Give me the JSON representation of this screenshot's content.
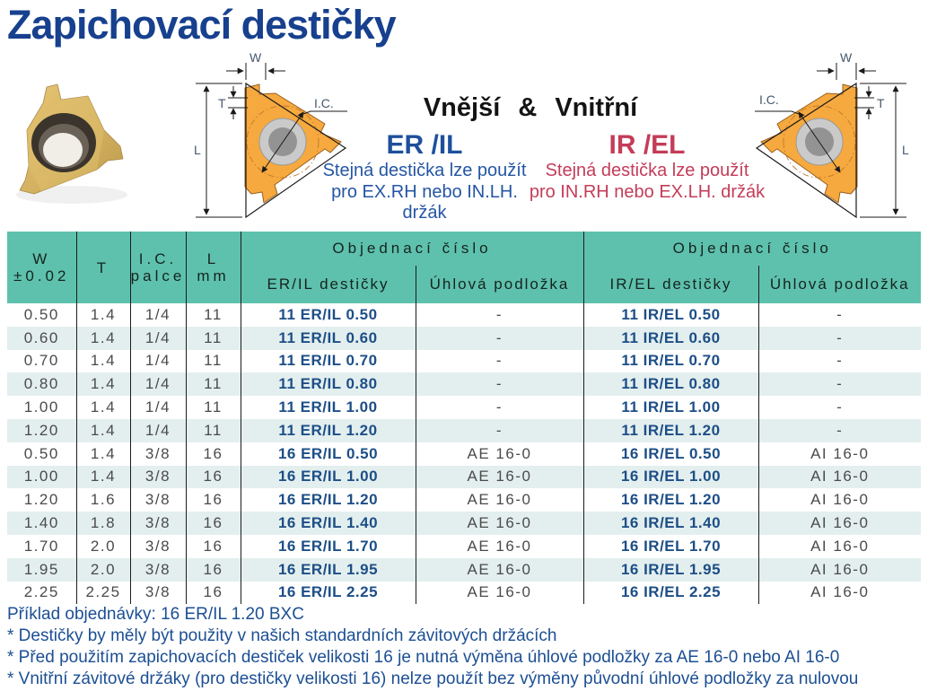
{
  "title": "Zapichovací destičky",
  "hero": {
    "heading": "Vnější & Vnitřní",
    "er_block": {
      "code": "ER /IL",
      "line1": "Stejná destička lze použít",
      "line2": "pro EX.RH nebo IN.LH. držák"
    },
    "ir_block": {
      "code": "IR /EL",
      "line1": "Stejná destička lze použít",
      "line2": "pro IN.RH nebo EX.LH. držák"
    }
  },
  "diagram_labels": {
    "w": "W",
    "t": "T",
    "l": "L",
    "ic": "I.C."
  },
  "table": {
    "headers": {
      "w": [
        "W",
        "±0.02"
      ],
      "t": "T",
      "ic": [
        "I.C.",
        "palce"
      ],
      "l": [
        "L",
        "mm"
      ],
      "order_group_left": "Objednací číslo",
      "order_group_right": "Objednací číslo",
      "er_il": "ER/IL destičky",
      "uhlova_left": "Úhlová podložka",
      "ir_el": "IR/EL destičky",
      "uhlova_right": "Úhlová podložka"
    },
    "rows": [
      [
        "0.50",
        "1.4",
        "1/4",
        "11",
        "11 ER/IL 0.50",
        "-",
        "11 IR/EL 0.50",
        "-"
      ],
      [
        "0.60",
        "1.4",
        "1/4",
        "11",
        "11 ER/IL 0.60",
        "-",
        "11 IR/EL 0.60",
        "-"
      ],
      [
        "0.70",
        "1.4",
        "1/4",
        "11",
        "11 ER/IL 0.70",
        "-",
        "11 IR/EL 0.70",
        "-"
      ],
      [
        "0.80",
        "1.4",
        "1/4",
        "11",
        "11 ER/IL 0.80",
        "-",
        "11 IR/EL 0.80",
        "-"
      ],
      [
        "1.00",
        "1.4",
        "1/4",
        "11",
        "11 ER/IL 1.00",
        "-",
        "11 IR/EL 1.00",
        "-"
      ],
      [
        "1.20",
        "1.4",
        "1/4",
        "11",
        "11 ER/IL 1.20",
        "-",
        "11 IR/EL 1.20",
        "-"
      ],
      [
        "0.50",
        "1.4",
        "3/8",
        "16",
        "16 ER/IL 0.50",
        "AE 16-0",
        "16 IR/EL 0.50",
        "AI 16-0"
      ],
      [
        "1.00",
        "1.4",
        "3/8",
        "16",
        "16 ER/IL 1.00",
        "AE 16-0",
        "16 IR/EL 1.00",
        "AI 16-0"
      ],
      [
        "1.20",
        "1.6",
        "3/8",
        "16",
        "16 ER/IL 1.20",
        "AE 16-0",
        "16 IR/EL 1.20",
        "AI 16-0"
      ],
      [
        "1.40",
        "1.8",
        "3/8",
        "16",
        "16 ER/IL 1.40",
        "AE 16-0",
        "16 IR/EL 1.40",
        "AI 16-0"
      ],
      [
        "1.70",
        "2.0",
        "3/8",
        "16",
        "16 ER/IL 1.70",
        "AE 16-0",
        "16 IR/EL 1.70",
        "AI 16-0"
      ],
      [
        "1.95",
        "2.0",
        "3/8",
        "16",
        "16 ER/IL 1.95",
        "AE 16-0",
        "16 IR/EL 1.95",
        "AI 16-0"
      ],
      [
        "2.25",
        "2.25",
        "3/8",
        "16",
        "16 ER/IL 2.25",
        "AE 16-0",
        "16 IR/EL 2.25",
        "AI 16-0"
      ]
    ]
  },
  "footnotes": {
    "example": "Příklad objednávky: 16 ER/IL 1.20 BXC",
    "notes": [
      "* Destičky by měly být použity v našich standardních závitových držácích",
      "* Před použitím zapichovacích destiček velikosti 16 je nutná výměna úhlové podložky za AE 16-0 nebo AI 16-0",
      "* Vnitřní závitové držáky (pro destičky velikosti 16) nelze použít bez výměny původní úhlové podložky za nulovou"
    ]
  },
  "colors": {
    "title_navy": "#17408e",
    "code_blue": "#1d4e87",
    "er_blue": "#1e509c",
    "ir_red": "#c43c58",
    "body_blue": "#2456a4",
    "header_teal": "#5ec1ad",
    "row_stripe": "#e3efee",
    "gray_text": "#4b4b4b"
  }
}
